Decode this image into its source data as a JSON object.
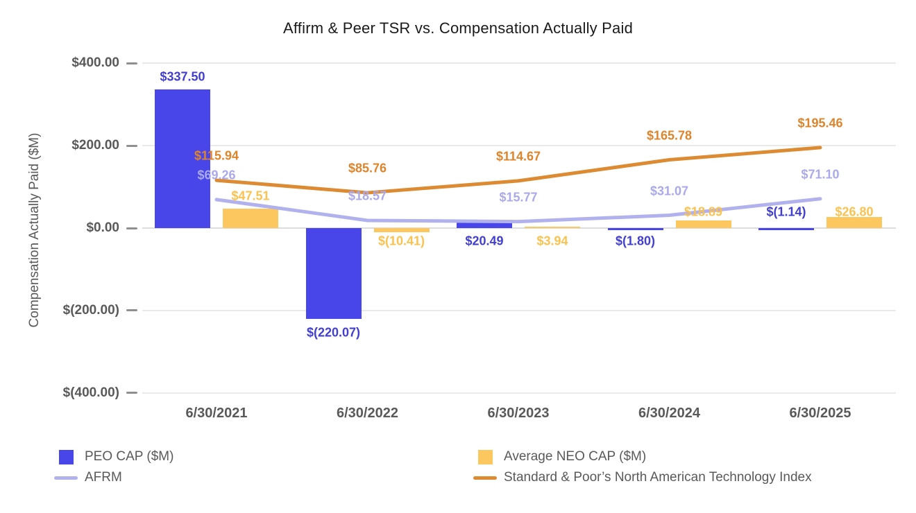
{
  "chart_data": {
    "type": "bar+line combo",
    "title": "Affirm & Peer TSR vs. Compensation Actually Paid",
    "ylabel": "Compensation Actually Paid ($M)",
    "categories": [
      "6/30/2021",
      "6/30/2022",
      "6/30/2023",
      "6/30/2024",
      "6/30/2025"
    ],
    "ylim": [
      -400,
      400
    ],
    "grid": "horizontal gridlines on",
    "legend_position": "bottom, two columns",
    "y_ticks": [
      {
        "value": 400,
        "label": "$400.00"
      },
      {
        "value": 200,
        "label": "$200.00"
      },
      {
        "value": 0,
        "label": "$0.00"
      },
      {
        "value": -200,
        "label": "$(200.00)"
      },
      {
        "value": -400,
        "label": "$(400.00)"
      }
    ],
    "bar_series": [
      {
        "name": "PEO CAP ($M)",
        "color": "#4946e9",
        "label_color": "#413ed2",
        "values": [
          337.5,
          -220.07,
          20.49,
          -1.8,
          -1.14
        ],
        "labels": [
          "$337.50",
          "$(220.07)",
          "$20.49",
          "$(1.80)",
          "$(1.14)"
        ],
        "label_pos": [
          "above-end",
          "below-end",
          "below-axis",
          "below-axis",
          "above-axis"
        ]
      },
      {
        "name": "Average NEO CAP ($M)",
        "color": "#fdc75f",
        "label_color": "#fbc24f",
        "values": [
          47.51,
          -10.41,
          3.94,
          18.89,
          26.8
        ],
        "labels": [
          "$47.51",
          "$(10.41)",
          "$3.94",
          "$18.89",
          "$26.80"
        ],
        "label_pos": [
          "above-end",
          "below-axis",
          "below-axis",
          "above-end",
          "above-end"
        ]
      }
    ],
    "line_series": [
      {
        "name": "AFRM",
        "color": "#b1b1ee",
        "label_color": "#a9a9ec",
        "values": [
          69.26,
          18.57,
          15.77,
          31.07,
          71.1
        ],
        "labels": [
          "$69.26",
          "$18.57",
          "$15.77",
          "$31.07",
          "$71.10"
        ]
      },
      {
        "name": "Standard & Poor’s North American Technology Index",
        "color": "#dd8b33",
        "label_color": "#de842b",
        "values": [
          115.94,
          85.76,
          114.67,
          165.78,
          195.46
        ],
        "labels": [
          "$115.94",
          "$85.76",
          "$114.67",
          "$165.78",
          "$195.46"
        ]
      }
    ],
    "legend": [
      {
        "label": "PEO CAP ($M)",
        "swatch": "square",
        "color": "#4946e9"
      },
      {
        "label": "Average NEO CAP ($M)",
        "swatch": "square",
        "color": "#fdc75f"
      },
      {
        "label": "AFRM",
        "swatch": "line",
        "color": "#b1b1ee"
      },
      {
        "label": "Standard & Poor’s North American Technology Index",
        "swatch": "line",
        "color": "#dd8b33"
      }
    ]
  }
}
